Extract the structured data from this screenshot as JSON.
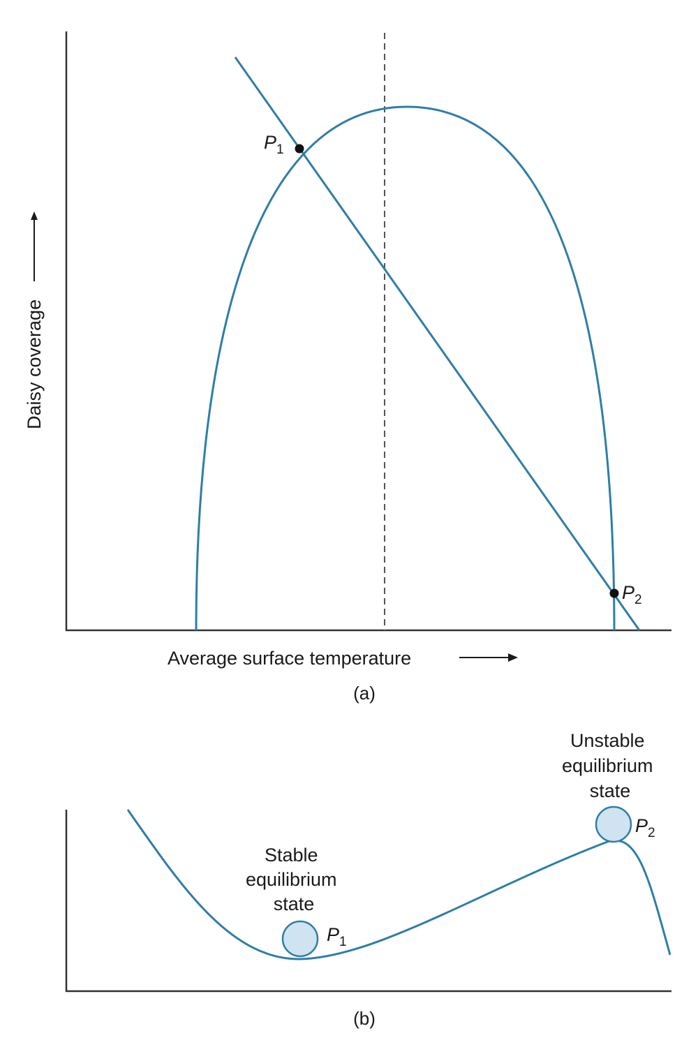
{
  "panel_a": {
    "caption": "(a)",
    "x_axis_label": "Average surface temperature",
    "y_axis_label": "Daisy coverage",
    "points": [
      {
        "letter": "P",
        "sub": "1"
      },
      {
        "letter": "P",
        "sub": "2"
      }
    ]
  },
  "panel_b": {
    "caption": "(b)",
    "stable_label": [
      "Stable",
      "equilibrium",
      "state"
    ],
    "unstable_label": [
      "Unstable",
      "equilibrium",
      "state"
    ],
    "points": [
      {
        "letter": "P",
        "sub": "1"
      },
      {
        "letter": "P",
        "sub": "2"
      }
    ]
  },
  "colors": {
    "curve": "#2e7ea6",
    "ball_fill": "#cfe3f1",
    "axis": "#333333",
    "dashed": "#555555",
    "point": "#111111"
  }
}
